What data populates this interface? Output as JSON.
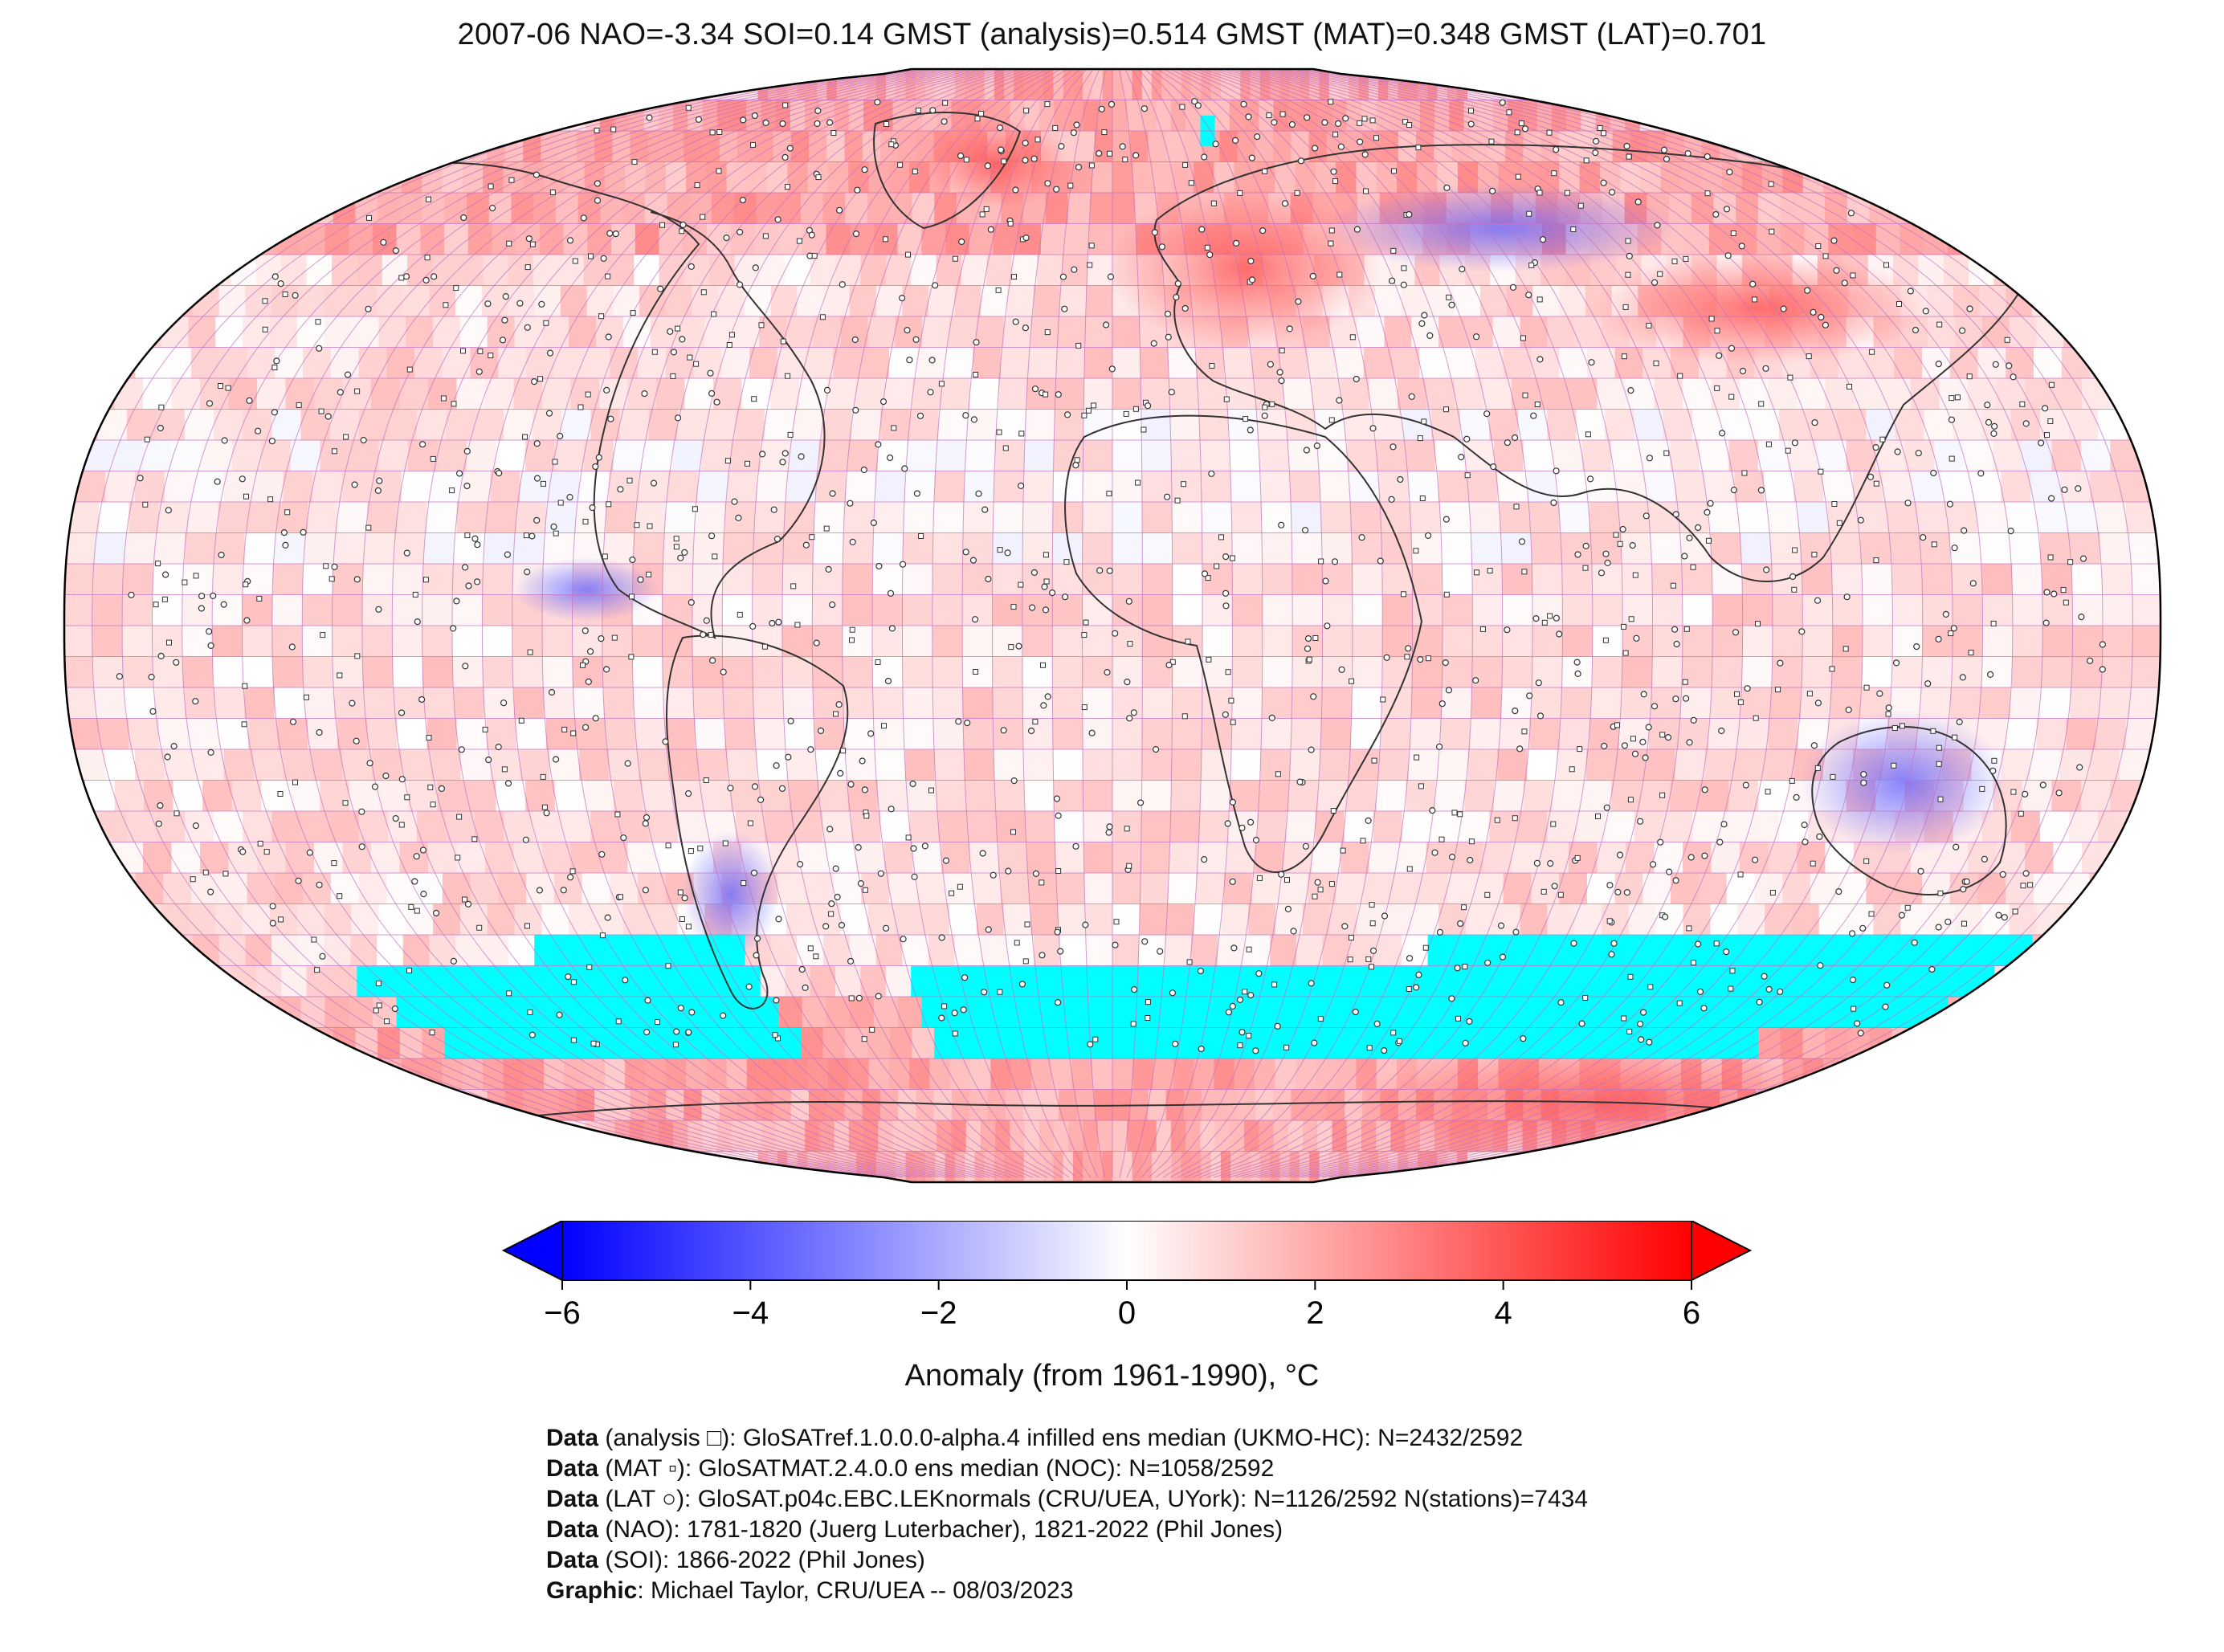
{
  "title": "2007-06 NAO=-3.34 SOI=0.14 GMST (analysis)=0.514 GMST (MAT)=0.348 GMST (LAT)=0.701",
  "colorbar": {
    "label": "Anomaly (from 1961-1990), °C",
    "ticks": [
      "−6",
      "−4",
      "−2",
      "0",
      "2",
      "4",
      "6"
    ],
    "min": -6,
    "max": 6,
    "colors": {
      "low": "#0000ff",
      "mid": "#ffffff",
      "high": "#ff0000",
      "nodata": "#00ffff"
    }
  },
  "credits": [
    {
      "key": "Data",
      "text": " (analysis □): GloSATref.1.0.0.0-alpha.4 infilled ens median (UKMO-HC): N=2432/2592"
    },
    {
      "key": "Data",
      "text": " (MAT ▫): GloSATMAT.2.4.0.0 ens median (NOC): N=1058/2592"
    },
    {
      "key": "Data",
      "text": " (LAT ○): GloSAT.p04c.EBC.LEKnormals (CRU/UEA, UYork): N=1126/2592 N(stations)=7434"
    },
    {
      "key": "Data",
      "text": " (NAO): 1781-1820 (Juerg Luterbacher), 1821-2022 (Phil Jones)"
    },
    {
      "key": "Data",
      "text": " (SOI): 1866-2022 (Phil Jones)"
    },
    {
      "key": "Graphic",
      "text": ": Michael Taylor, CRU/UEA -- 08/03/2023"
    }
  ],
  "map": {
    "projection": "Robinson",
    "grid": "5° x 5°",
    "anomaly_regions": [
      {
        "name": "Western Australia",
        "value": -3.5
      },
      {
        "name": "Northern Siberia",
        "value": -2.5
      },
      {
        "name": "Central Asia",
        "value": 4.5
      },
      {
        "name": "Eastern Europe",
        "value": 4.0
      },
      {
        "name": "North Atlantic",
        "value": 3.0
      },
      {
        "name": "Southern Ocean",
        "value": "no data"
      }
    ]
  }
}
